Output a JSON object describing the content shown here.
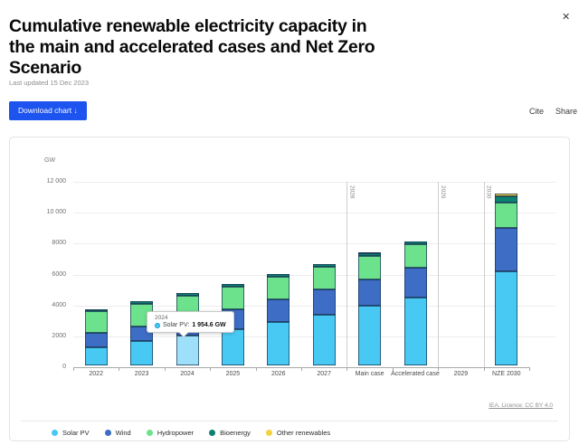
{
  "header": {
    "title_lines": [
      "Cumulative renewable electricity capacity in",
      "the main and accelerated cases and Net Zero",
      "Scenario"
    ],
    "last_updated": "Last updated 15 Dec 2023",
    "download_label": "Download chart",
    "download_icon": "↓",
    "cite_label": "Cite",
    "share_label": "Share",
    "close_icon": "✕"
  },
  "chart_data": {
    "type": "bar",
    "stacked": true,
    "title": "Cumulative renewable electricity capacity in the main and accelerated cases and Net Zero Scenario",
    "unit_label": "GW",
    "ylabel": "GW",
    "ylim": [
      0,
      12000
    ],
    "ytick_step": 2000,
    "ytick_labels": [
      "0",
      "2000",
      "4000",
      "6000",
      "8000",
      "10 000",
      "12 000"
    ],
    "grid": true,
    "legend_position": "bottom",
    "categories": [
      "2022",
      "2023",
      "2024",
      "2025",
      "2026",
      "2027",
      "Main case",
      "Accelerated case",
      "2029",
      "NZE 2030"
    ],
    "series": [
      {
        "name": "Solar PV",
        "color": "#47c9f3",
        "values": [
          1145,
          1560,
          1954.6,
          2350,
          2820,
          3300,
          3850,
          4380,
          0,
          6100
        ]
      },
      {
        "name": "Wind",
        "color": "#3e6dc6",
        "values": [
          940,
          950,
          1130,
          1290,
          1430,
          1590,
          1740,
          1920,
          0,
          2790
        ]
      },
      {
        "name": "Hydropower",
        "color": "#6ce28d",
        "values": [
          1410,
          1480,
          1440,
          1455,
          1470,
          1485,
          1505,
          1520,
          0,
          1660
        ]
      },
      {
        "name": "Bioenergy",
        "color": "#0c8273",
        "values": [
          150,
          160,
          160,
          165,
          170,
          175,
          180,
          185,
          0,
          370
        ]
      },
      {
        "name": "Other renewables",
        "color": "#f2d33e",
        "values": [
          15,
          15,
          15,
          20,
          20,
          20,
          25,
          25,
          0,
          180
        ]
      }
    ],
    "scenario_lines": [
      {
        "label": "2028",
        "after_category_index": 5
      },
      {
        "label": "2029",
        "after_category_index": 7
      },
      {
        "label": "2030",
        "after_category_index": 8
      }
    ],
    "highlight": {
      "category_index": 2,
      "series": "Solar PV",
      "color": "#9edff9"
    }
  },
  "tooltip": {
    "header": "2024",
    "label_prefix": "Solar PV: ",
    "value_text": "1 954.6 GW"
  },
  "footer": {
    "licence": "IEA. Licence: CC BY 4.0"
  }
}
